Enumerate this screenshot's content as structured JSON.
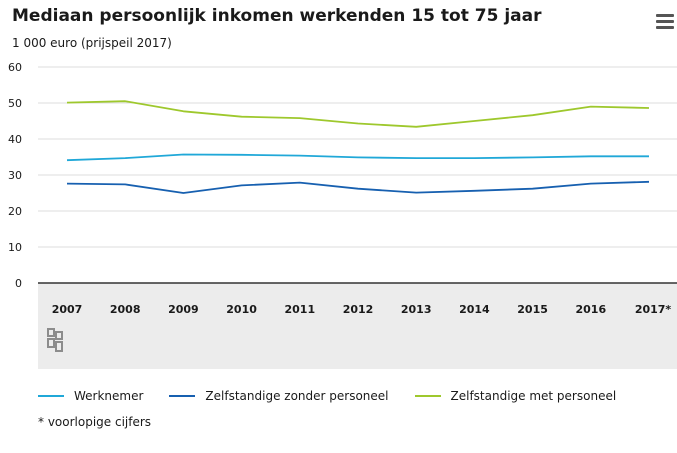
{
  "header": {
    "title": "Mediaan persoonlijk inkomen werkenden 15 tot 75 jaar",
    "subtitle": "1 000 euro (prijspeil 2017)",
    "menu_icon": "hamburger-menu-icon"
  },
  "footnote": "* voorlopige cijfers",
  "colors": {
    "werknemer": "#20a8d8",
    "zzp": "#1760b0",
    "zmp": "#9ec82d",
    "axis_band": "#ececec"
  },
  "chart_data": {
    "type": "line",
    "title": "Mediaan persoonlijk inkomen werkenden 15 tot 75 jaar",
    "ylabel": "1 000 euro (prijspeil 2017)",
    "xlabel": "",
    "ylim": [
      0,
      60
    ],
    "yticks": [
      "0",
      "10",
      "20",
      "30",
      "40",
      "50",
      "60"
    ],
    "categories": [
      "2007",
      "2008",
      "2009",
      "2010",
      "2011",
      "2012",
      "2013",
      "2014",
      "2015",
      "2016",
      "2017*"
    ],
    "grid": true,
    "legend_position": "bottom",
    "series": [
      {
        "name": "Werknemer",
        "color": "#20a8d8",
        "values": [
          34.1,
          34.7,
          35.7,
          35.6,
          35.4,
          34.9,
          34.7,
          34.7,
          34.9,
          35.2,
          35.2
        ]
      },
      {
        "name": "Zelfstandige zonder personeel",
        "color": "#1760b0",
        "values": [
          27.6,
          27.4,
          25.0,
          27.1,
          27.9,
          26.2,
          25.1,
          25.6,
          26.2,
          27.6,
          28.1
        ]
      },
      {
        "name": "Zelfstandige met personeel",
        "color": "#9ec82d",
        "values": [
          50.1,
          50.5,
          47.7,
          46.2,
          45.8,
          44.3,
          43.4,
          45.0,
          46.6,
          49.0,
          48.6
        ]
      }
    ]
  }
}
